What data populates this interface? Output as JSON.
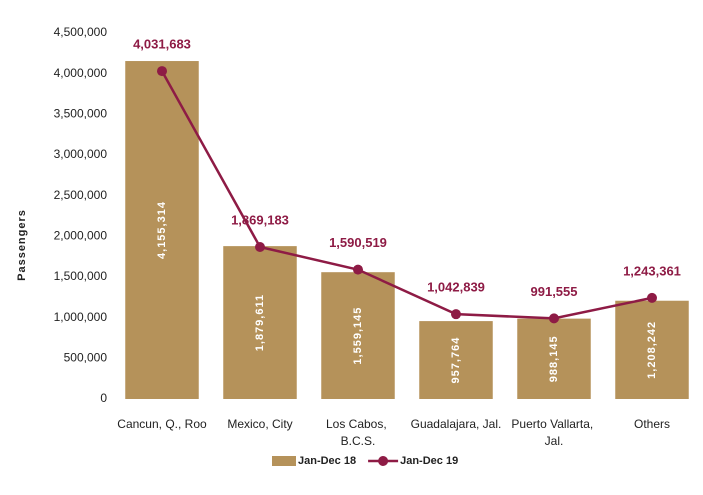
{
  "chart_data": {
    "type": "bar",
    "ylabel": "Passengers",
    "categories": [
      "Cancun, Q., Roo",
      "Mexico, City",
      "Los Cabos, B.C.S.",
      "Guadalajara, Jal.",
      "Puerto Vallarta, Jal.",
      "Others"
    ],
    "series": [
      {
        "name": "Jan-Dec 18",
        "type": "bar",
        "color": "#b5925a",
        "values": [
          4155314,
          1879611,
          1559145,
          957764,
          988145,
          1208242
        ],
        "value_labels": [
          "4,155,314",
          "1,879,611",
          "1,559,145",
          "957,764",
          "988,145",
          "1,208,242"
        ]
      },
      {
        "name": "Jan-Dec 19",
        "type": "line",
        "color": "#8e1b45",
        "values": [
          4031683,
          1869183,
          1590519,
          1042839,
          991555,
          1243361
        ],
        "value_labels": [
          "4,031,683",
          "1,869,183",
          "1,590,519",
          "1,042,839",
          "991,555",
          "1,243,361"
        ]
      }
    ],
    "ylim": [
      0,
      4500000
    ],
    "yticks": [
      0,
      {
        "value": 500000,
        "label": "500,000"
      },
      {
        "value": 1000000,
        "label": "1,000,000"
      },
      {
        "value": 1500000,
        "label": "1,500,000"
      },
      {
        "value": 2000000,
        "label": "2,000,000"
      },
      {
        "value": 2500000,
        "label": "2,500,000"
      },
      {
        "value": 3000000,
        "label": "3,000,000"
      },
      {
        "value": 3500000,
        "label": "3,500,000"
      },
      {
        "value": 4000000,
        "label": "4,000,000"
      },
      {
        "value": 4500000,
        "label": "4,500,000"
      }
    ],
    "legend": "bottom"
  }
}
